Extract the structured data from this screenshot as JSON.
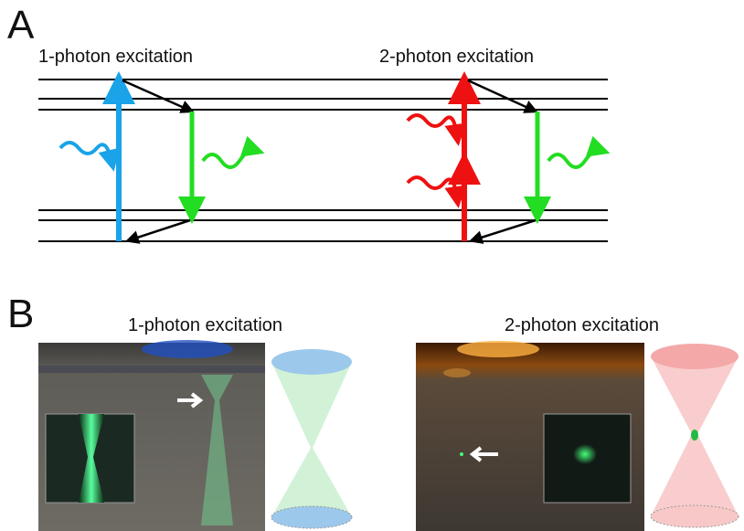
{
  "panel_a": {
    "label": "A",
    "left_title": "1-photon excitation",
    "right_title": "2-photon excitation"
  },
  "panel_b": {
    "label": "B",
    "left_title": "1-photon excitation",
    "right_title": "2-photon excitation"
  }
}
